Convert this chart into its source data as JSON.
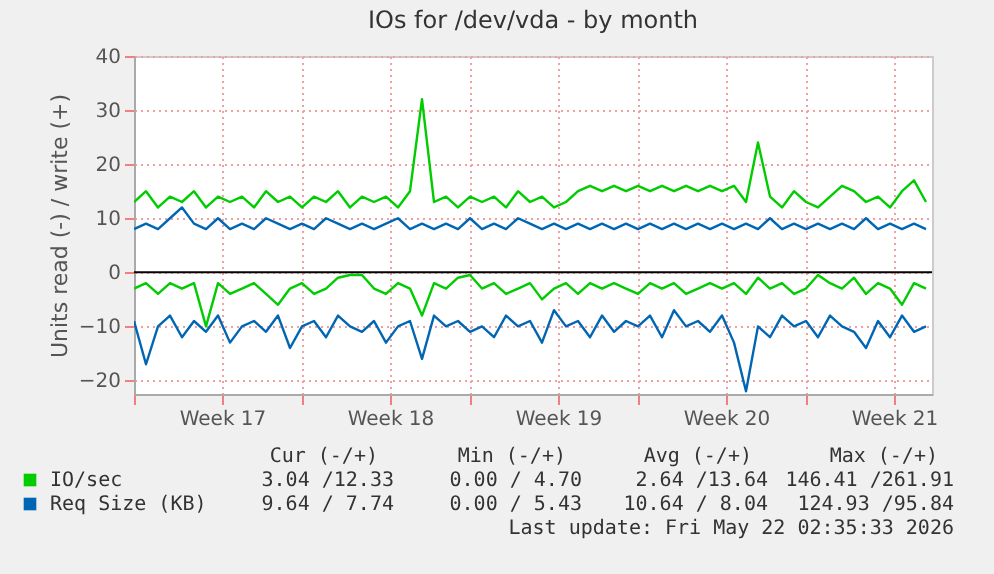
{
  "chart_data": {
    "type": "line",
    "title": "IOs for /dev/vda - by month",
    "ylabel": "Units read (-) / write (+)",
    "x": [
      "2026-04-20T00:00",
      "2026-04-20T12:00",
      "2026-04-21T00:00",
      "2026-04-21T12:00",
      "2026-04-22T00:00",
      "2026-04-22T12:00",
      "2026-04-23T00:00",
      "2026-04-23T12:00",
      "2026-04-24T00:00",
      "2026-04-24T12:00",
      "2026-04-25T00:00",
      "2026-04-25T12:00",
      "2026-04-26T00:00",
      "2026-04-26T12:00",
      "2026-04-27T00:00",
      "2026-04-27T12:00",
      "2026-04-28T00:00",
      "2026-04-28T12:00",
      "2026-04-29T00:00",
      "2026-04-29T12:00",
      "2026-04-30T00:00",
      "2026-04-30T12:00",
      "2026-05-01T00:00",
      "2026-05-01T12:00",
      "2026-05-02T00:00",
      "2026-05-02T12:00",
      "2026-05-03T00:00",
      "2026-05-03T12:00",
      "2026-05-04T00:00",
      "2026-05-04T12:00",
      "2026-05-05T00:00",
      "2026-05-05T12:00",
      "2026-05-06T00:00",
      "2026-05-06T12:00",
      "2026-05-07T00:00",
      "2026-05-07T12:00",
      "2026-05-08T00:00",
      "2026-05-08T12:00",
      "2026-05-09T00:00",
      "2026-05-09T12:00",
      "2026-05-10T00:00",
      "2026-05-10T12:00",
      "2026-05-11T00:00",
      "2026-05-11T12:00",
      "2026-05-12T00:00",
      "2026-05-12T12:00",
      "2026-05-13T00:00",
      "2026-05-13T12:00",
      "2026-05-14T00:00",
      "2026-05-14T12:00",
      "2026-05-15T00:00",
      "2026-05-15T12:00",
      "2026-05-16T00:00",
      "2026-05-16T12:00",
      "2026-05-17T00:00",
      "2026-05-17T12:00",
      "2026-05-18T00:00",
      "2026-05-18T12:00",
      "2026-05-19T00:00",
      "2026-05-19T12:00",
      "2026-05-20T00:00",
      "2026-05-20T12:00",
      "2026-05-21T00:00",
      "2026-05-21T12:00",
      "2026-05-22T00:00",
      "2026-05-22T12:00",
      "2026-05-23T00:00"
    ],
    "series": [
      {
        "name": "IO/sec",
        "color": "#00cc00",
        "values": [
          13,
          15,
          12,
          14,
          13,
          15,
          12,
          14,
          13,
          14,
          12,
          15,
          13,
          14,
          12,
          14,
          13,
          15,
          12,
          14,
          13,
          14,
          12,
          15,
          32,
          13,
          14,
          12,
          14,
          13,
          14,
          12,
          15,
          13,
          14,
          12,
          13,
          15,
          16,
          15,
          16,
          15,
          16,
          15,
          16,
          15,
          16,
          15,
          16,
          15,
          16,
          13,
          24,
          14,
          12,
          15,
          13,
          12,
          14,
          16,
          15,
          13,
          14,
          12,
          15,
          17,
          13
        ]
      },
      {
        "name": "Req Size (KB)",
        "color": "#0066b3",
        "values": [
          8,
          9,
          8,
          10,
          12,
          9,
          8,
          10,
          8,
          9,
          8,
          10,
          9,
          8,
          9,
          8,
          10,
          9,
          8,
          9,
          8,
          9,
          10,
          8,
          9,
          8,
          9,
          8,
          10,
          8,
          9,
          8,
          10,
          9,
          8,
          9,
          8,
          9,
          8,
          9,
          8,
          9,
          8,
          9,
          8,
          9,
          8,
          9,
          8,
          9,
          8,
          9,
          8,
          10,
          8,
          9,
          8,
          9,
          8,
          9,
          8,
          10,
          8,
          9,
          8,
          9,
          8
        ]
      },
      {
        "color": "#00cc00",
        "values": [
          -3,
          -2,
          -4,
          -2,
          -3,
          -2,
          -10,
          -2,
          -4,
          -3,
          -2,
          -4,
          -6,
          -3,
          -2,
          -4,
          -3,
          -1,
          -0.5,
          -0.5,
          -3,
          -4,
          -2,
          -3,
          -8,
          -2,
          -3,
          -1,
          -0.5,
          -3,
          -2,
          -4,
          -3,
          -2,
          -5,
          -3,
          -2,
          -4,
          -2,
          -3,
          -2,
          -3,
          -4,
          -2,
          -3,
          -2,
          -4,
          -3,
          -2,
          -3,
          -2,
          -4,
          -1,
          -3,
          -2,
          -4,
          -3,
          -0.5,
          -2,
          -3,
          -1,
          -4,
          -2,
          -3,
          -6,
          -2,
          -3
        ]
      },
      {
        "color": "#0066b3",
        "values": [
          -9,
          -17,
          -10,
          -8,
          -12,
          -9,
          -11,
          -8,
          -13,
          -10,
          -9,
          -11,
          -8,
          -14,
          -10,
          -9,
          -12,
          -8,
          -10,
          -11,
          -9,
          -13,
          -10,
          -9,
          -16,
          -8,
          -10,
          -9,
          -11,
          -10,
          -12,
          -8,
          -10,
          -9,
          -13,
          -7,
          -10,
          -9,
          -12,
          -8,
          -11,
          -9,
          -10,
          -8,
          -12,
          -7,
          -10,
          -9,
          -11,
          -8,
          -13,
          -22,
          -10,
          -12,
          -8,
          -10,
          -9,
          -12,
          -8,
          -10,
          -11,
          -14,
          -9,
          -12,
          -8,
          -11,
          -10
        ]
      }
    ],
    "xlim": [
      "2026-04-20T00:00",
      "2026-05-23T06:00"
    ],
    "xticks": [
      {
        "value": "2026-04-20T00:00",
        "label": null
      },
      {
        "value": "2026-04-23T16:00",
        "label": "Week 17"
      },
      {
        "value": "2026-04-27T00:00",
        "label": null
      },
      {
        "value": "2026-04-30T16:00",
        "label": "Week 18"
      },
      {
        "value": "2026-05-04T00:00",
        "label": null
      },
      {
        "value": "2026-05-07T16:00",
        "label": "Week 19"
      },
      {
        "value": "2026-05-11T00:00",
        "label": null
      },
      {
        "value": "2026-05-14T16:00",
        "label": "Week 20"
      },
      {
        "value": "2026-05-18T00:00",
        "label": null
      },
      {
        "value": "2026-05-21T16:00",
        "label": "Week 21"
      }
    ],
    "ylim": [
      -22.5,
      40
    ],
    "yticks": [
      -20,
      -10,
      0,
      10,
      20,
      30,
      40
    ],
    "ref_lines": [
      {
        "axis": "y",
        "value": 0,
        "color": "#000000"
      }
    ],
    "grid": true,
    "legend": "bottom",
    "marker": "none",
    "line_style": "solid",
    "annotations": [
      "Cur (-/+)",
      "Min (-/+)",
      "Avg (-/+)",
      "Max (-/+)",
      "3.04 /12.33",
      "0.00 / 4.70",
      "2.64 /13.64",
      "146.41 /261.91",
      "9.64 / 7.74",
      "0.00 / 5.43",
      "10.64 / 8.04",
      "124.93 /95.84",
      "Last update: Fri May 22 02:35:33 2026"
    ]
  }
}
